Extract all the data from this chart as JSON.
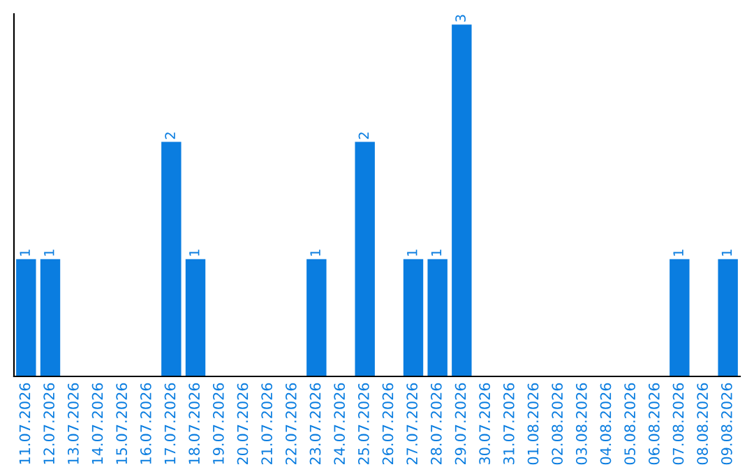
{
  "chart_data": {
    "type": "bar",
    "categories": [
      "11.07.2026",
      "12.07.2026",
      "13.07.2026",
      "14.07.2026",
      "15.07.2026",
      "16.07.2026",
      "17.07.2026",
      "18.07.2026",
      "19.07.2026",
      "20.07.2026",
      "21.07.2026",
      "22.07.2026",
      "23.07.2026",
      "24.07.2026",
      "25.07.2026",
      "26.07.2026",
      "27.07.2026",
      "28.07.2026",
      "29.07.2026",
      "30.07.2026",
      "31.07.2026",
      "01.08.2026",
      "02.08.2026",
      "03.08.2026",
      "04.08.2026",
      "05.08.2026",
      "06.08.2026",
      "07.08.2026",
      "08.08.2026",
      "09.08.2026"
    ],
    "values": [
      1,
      1,
      0,
      0,
      0,
      0,
      2,
      1,
      0,
      0,
      0,
      0,
      1,
      0,
      2,
      0,
      1,
      1,
      3,
      0,
      0,
      0,
      0,
      0,
      0,
      0,
      0,
      1,
      0,
      1
    ],
    "color": "#0a7de0",
    "value_labels": [
      "1",
      "1",
      null,
      null,
      null,
      null,
      "2",
      "1",
      null,
      null,
      null,
      null,
      "1",
      null,
      "2",
      null,
      "1",
      "1",
      "3",
      null,
      null,
      null,
      null,
      null,
      null,
      null,
      null,
      "1",
      null,
      "1"
    ],
    "tick_labels": "x",
    "grid": false,
    "legend": false
  }
}
